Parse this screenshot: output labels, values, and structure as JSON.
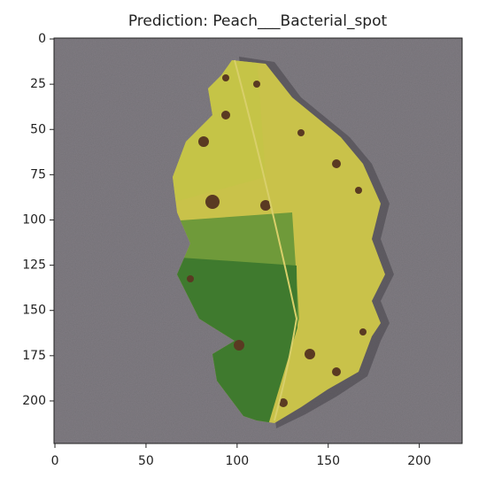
{
  "chart_data": {
    "type": "image",
    "title": "Prediction: Peach___Bacterial_spot",
    "xlim": [
      -0.5,
      223.5
    ],
    "xticks": [
      0,
      50,
      100,
      150,
      200
    ],
    "ylim": [
      223.5,
      -0.5
    ],
    "yticks": [
      0,
      25,
      50,
      75,
      100,
      125,
      150,
      175,
      200
    ]
  }
}
